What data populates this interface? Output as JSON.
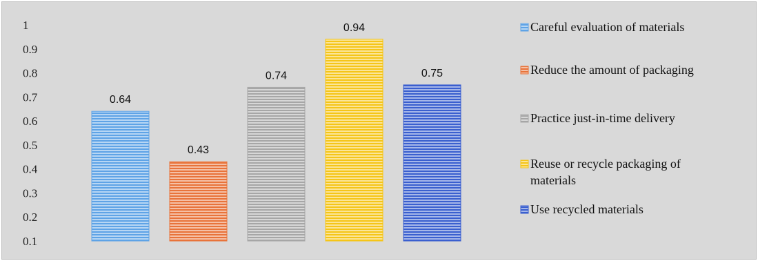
{
  "chart_data": {
    "type": "bar",
    "categories": [
      "Careful evaluation of materials",
      "Reduce the amount of packaging",
      "Practice just-in-time delivery",
      "Reuse or recycle packaging of materials",
      "Use recycled materials"
    ],
    "legend_lines": [
      [
        "Careful evaluation of materials"
      ],
      [
        "Reduce the amount of packaging"
      ],
      [
        "Practice just-in-time delivery"
      ],
      [
        "Reuse or recycle packaging of",
        "materials"
      ],
      [
        "Use recycled materials"
      ]
    ],
    "values": [
      0.64,
      0.43,
      0.74,
      0.94,
      0.75
    ],
    "data_labels": [
      "0.64",
      "0.43",
      "0.74",
      "0.94",
      "0.75"
    ],
    "colors": [
      "#5ea3e6",
      "#e8733a",
      "#a6a6a6",
      "#f5c518",
      "#3a5fcf"
    ],
    "yticks": [
      "0.1",
      "0.2",
      "0.3",
      "0.4",
      "0.5",
      "0.6",
      "0.7",
      "0.8",
      "0.9",
      "1"
    ],
    "ylim": [
      0.1,
      1
    ],
    "legend_position": "right",
    "grid": false
  }
}
